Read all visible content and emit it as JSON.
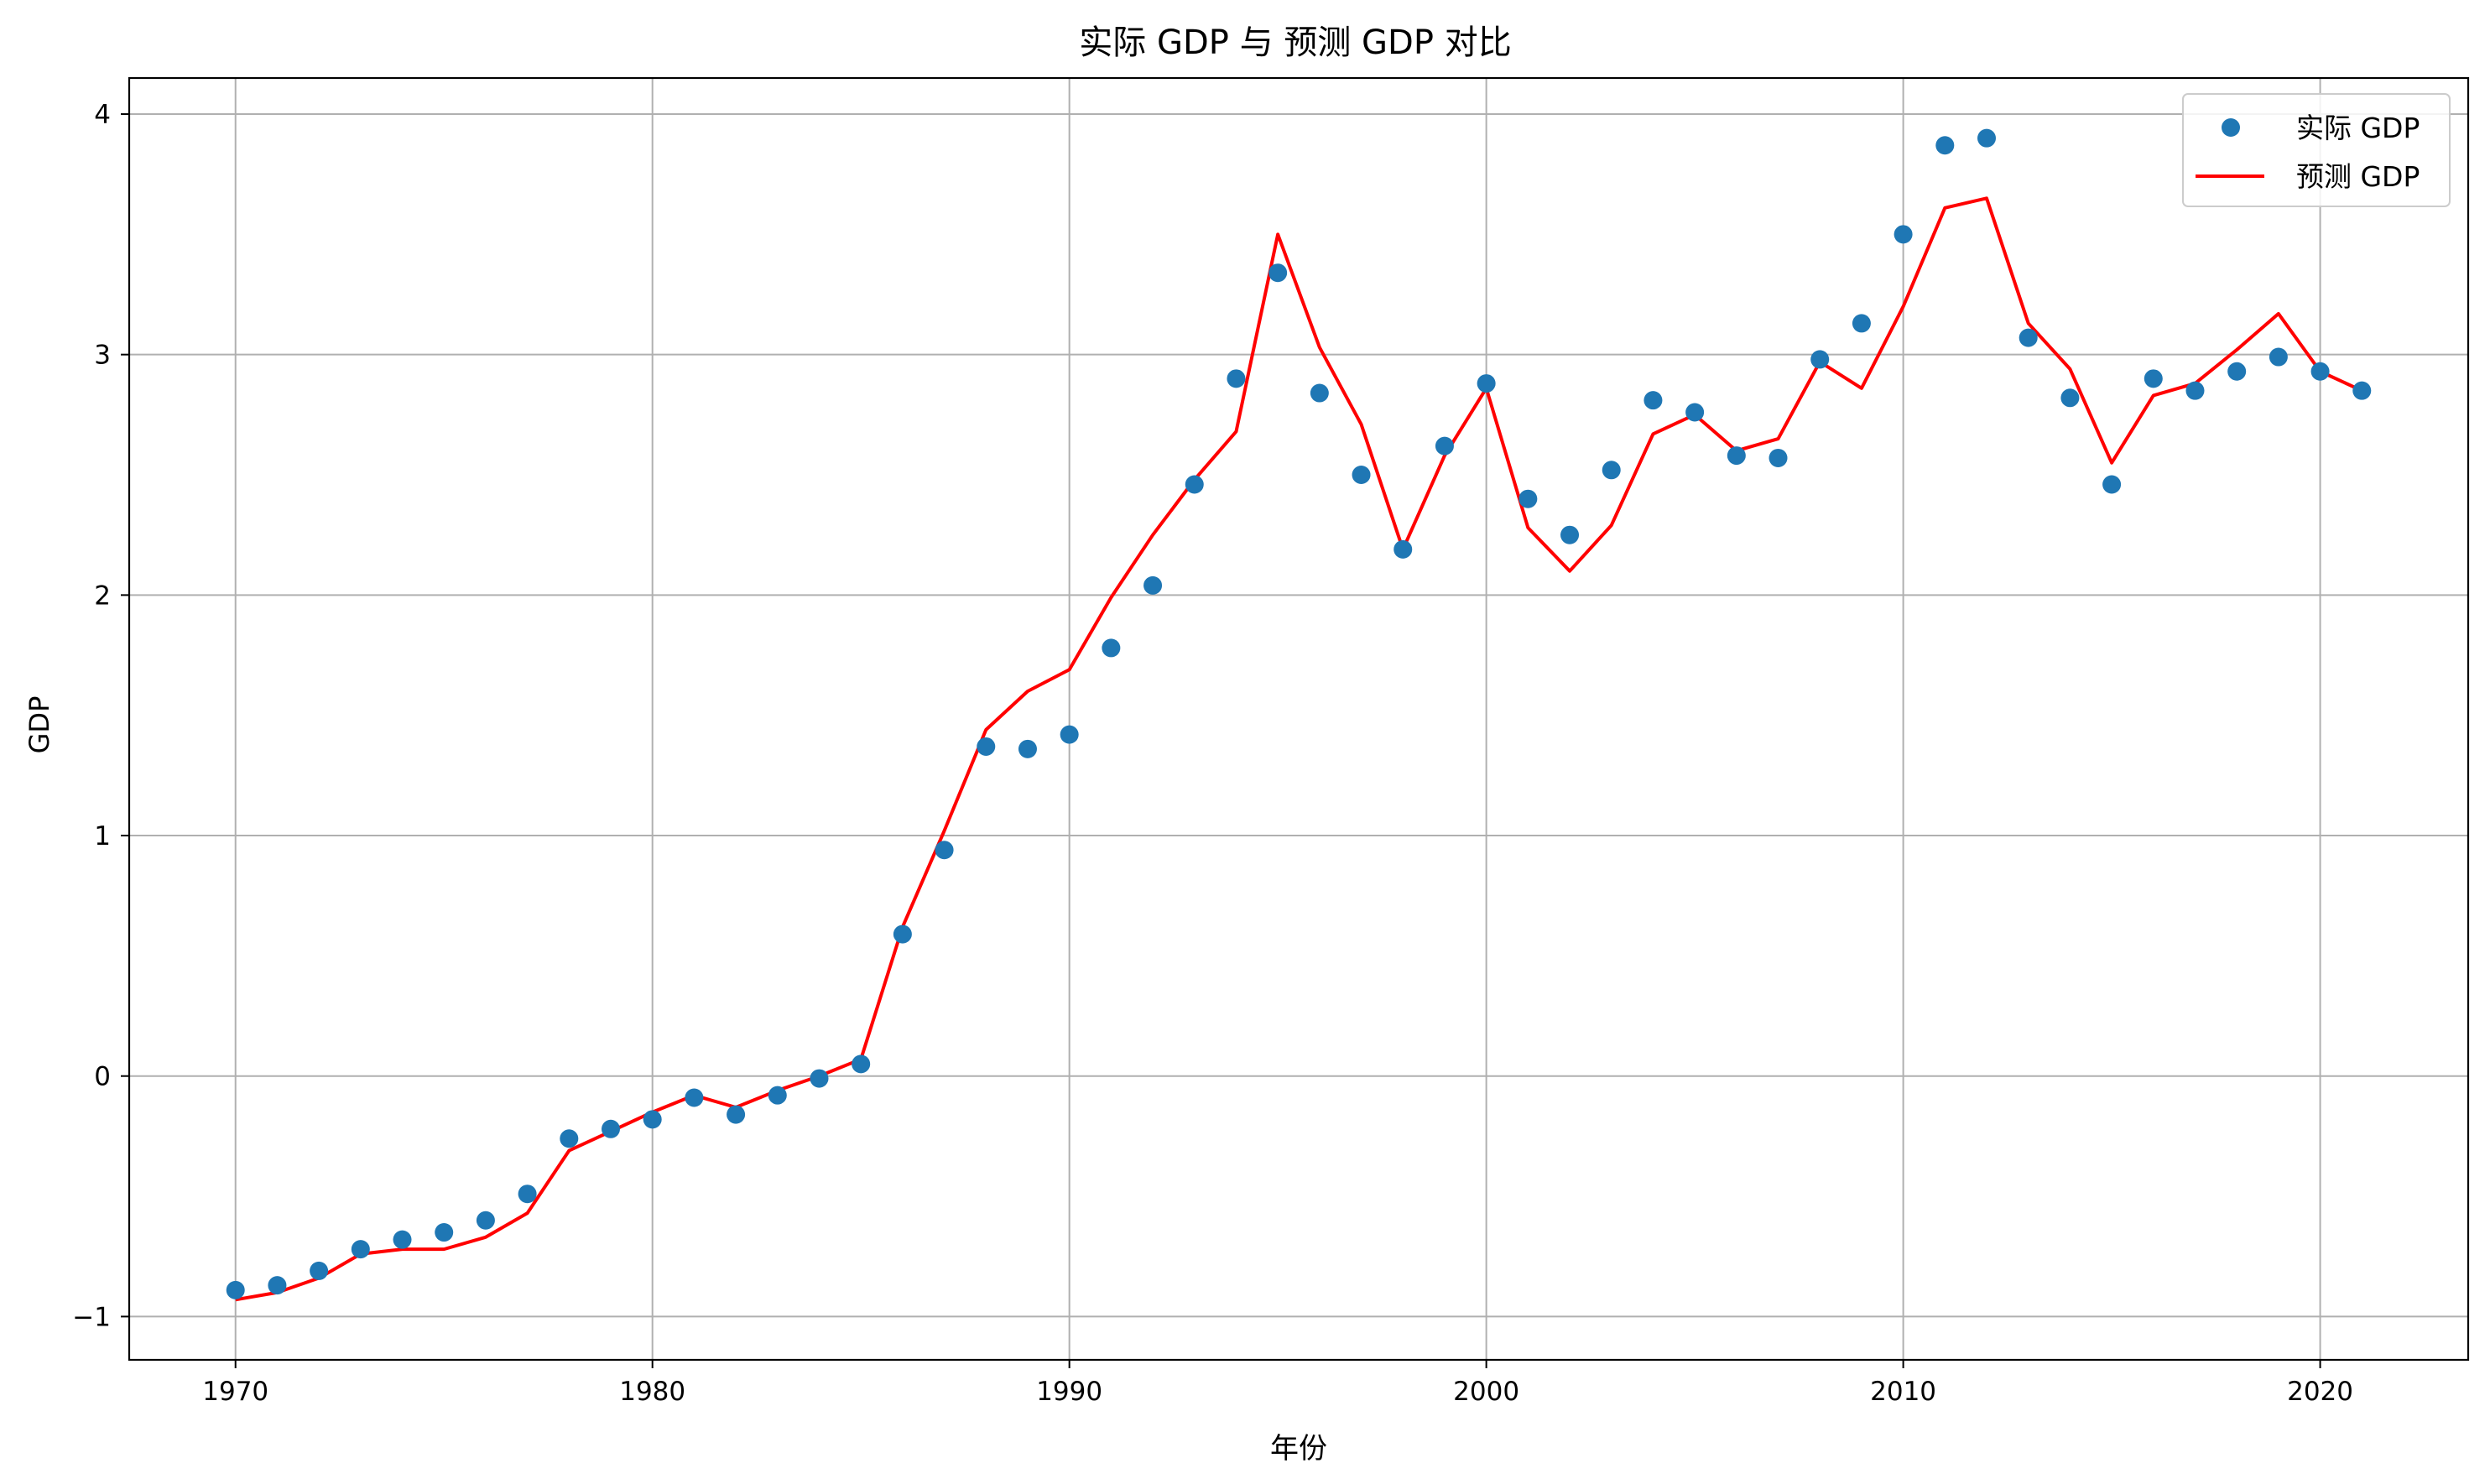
{
  "chart_data": {
    "type": "line",
    "title": "实际 GDP 与 预测 GDP 对比",
    "xlabel": "年份",
    "ylabel": "GDP",
    "xlim": [
      1967.45,
      2023.55
    ],
    "ylim": [
      -1.18,
      4.15
    ],
    "xticks": [
      1970,
      1980,
      1990,
      2000,
      2010,
      2020
    ],
    "yticks": [
      -1,
      0,
      1,
      2,
      3,
      4
    ],
    "xtick_labels": [
      "1970",
      "1980",
      "1990",
      "2000",
      "2010",
      "2020"
    ],
    "ytick_labels": [
      "−1",
      "0",
      "1",
      "2",
      "3",
      "4"
    ],
    "grid": true,
    "legend_position": "top-right",
    "x": [
      1970,
      1971,
      1972,
      1973,
      1974,
      1975,
      1976,
      1977,
      1978,
      1979,
      1980,
      1981,
      1982,
      1983,
      1984,
      1985,
      1986,
      1987,
      1988,
      1989,
      1990,
      1991,
      1992,
      1993,
      1994,
      1995,
      1996,
      1997,
      1998,
      1999,
      2000,
      2001,
      2002,
      2003,
      2004,
      2005,
      2006,
      2007,
      2008,
      2009,
      2010,
      2011,
      2012,
      2013,
      2014,
      2015,
      2016,
      2017,
      2018,
      2019,
      2020,
      2021
    ],
    "series": [
      {
        "name": "实际 GDP",
        "kind": "scatter",
        "color": "#1f77b4",
        "values": [
          -0.89,
          -0.87,
          -0.81,
          -0.72,
          -0.68,
          -0.65,
          -0.6,
          -0.49,
          -0.26,
          -0.22,
          -0.18,
          -0.09,
          -0.16,
          -0.08,
          -0.01,
          0.05,
          0.59,
          0.94,
          1.37,
          1.36,
          1.42,
          1.78,
          2.04,
          2.46,
          2.9,
          3.34,
          2.84,
          2.5,
          2.19,
          2.62,
          2.88,
          2.4,
          2.25,
          2.52,
          2.81,
          2.76,
          2.58,
          2.57,
          2.98,
          3.13,
          3.5,
          3.87,
          3.9,
          3.07,
          2.82,
          2.46,
          2.9,
          2.85,
          2.93,
          2.99,
          2.93,
          2.85
        ]
      },
      {
        "name": "预测 GDP",
        "kind": "line",
        "color": "#ff0000",
        "values": [
          -0.93,
          -0.9,
          -0.84,
          -0.74,
          -0.72,
          -0.72,
          -0.67,
          -0.57,
          -0.31,
          -0.23,
          -0.15,
          -0.08,
          -0.13,
          -0.06,
          0.0,
          0.07,
          0.62,
          1.02,
          1.44,
          1.6,
          1.69,
          1.99,
          2.25,
          2.48,
          2.68,
          3.5,
          3.03,
          2.71,
          2.19,
          2.58,
          2.86,
          2.28,
          2.1,
          2.29,
          2.67,
          2.75,
          2.6,
          2.65,
          2.97,
          2.86,
          3.2,
          3.61,
          3.65,
          3.13,
          2.94,
          2.55,
          2.83,
          2.88,
          3.02,
          3.17,
          2.93,
          2.85
        ]
      }
    ]
  }
}
